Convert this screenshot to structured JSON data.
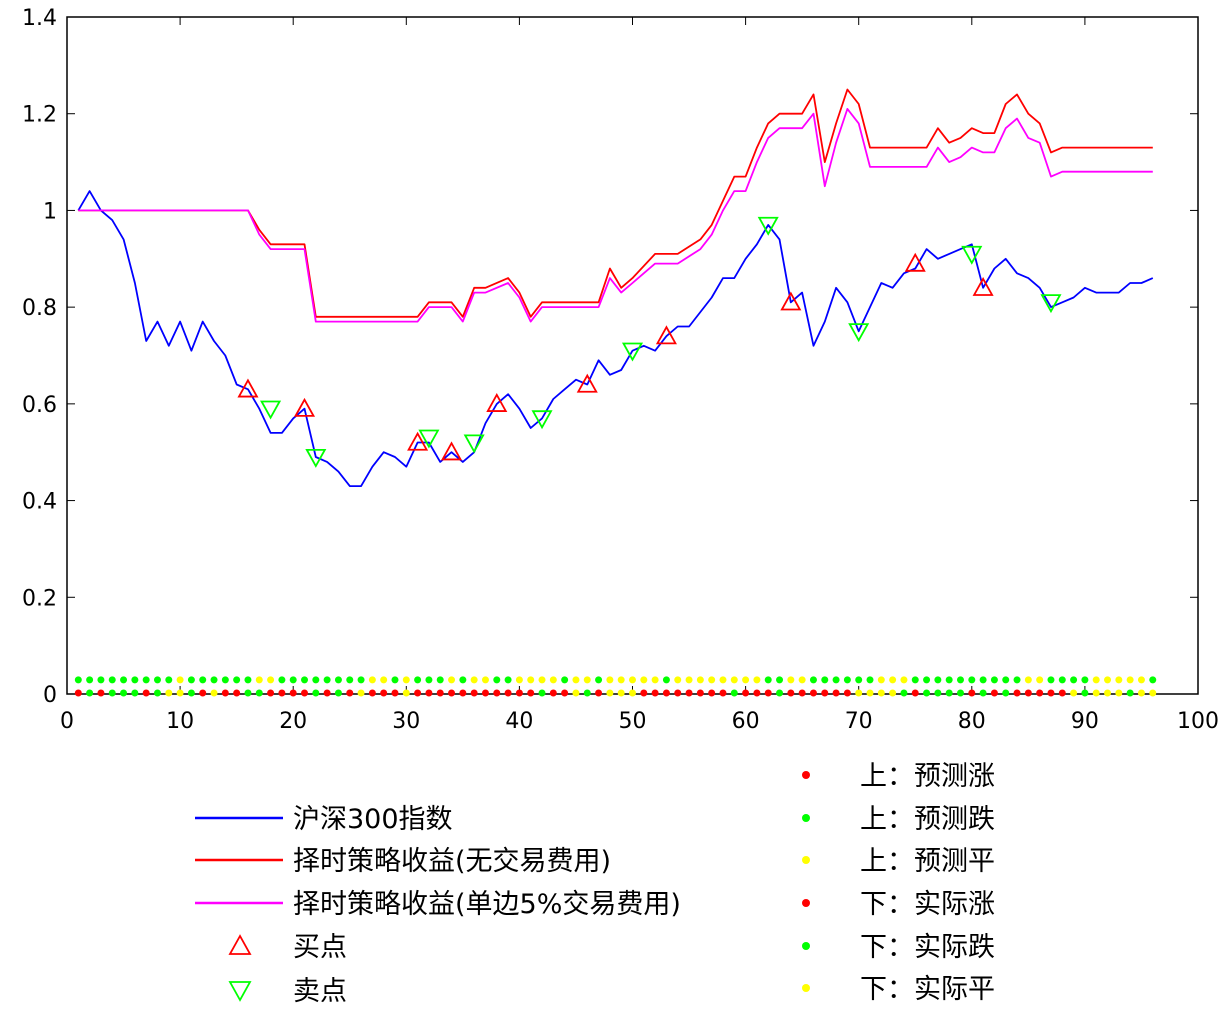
{
  "chart_data": {
    "type": "line",
    "xlim": [
      0,
      100
    ],
    "ylim": [
      0,
      1.4
    ],
    "xticks": [
      0,
      10,
      20,
      30,
      40,
      50,
      60,
      70,
      80,
      90,
      100
    ],
    "yticks": [
      0,
      0.2,
      0.4,
      0.6,
      0.8,
      1,
      1.2,
      1.4
    ],
    "xtick_labels": [
      "0",
      "10",
      "20",
      "30",
      "40",
      "50",
      "60",
      "70",
      "80",
      "90",
      "100"
    ],
    "ytick_labels": [
      "0",
      "0.2",
      "0.4",
      "0.6",
      "0.8",
      "1",
      "1.2",
      "1.4"
    ],
    "grid": false,
    "series": [
      {
        "name": "沪深300指数",
        "color": "#0000ff",
        "x": [
          1,
          2,
          3,
          4,
          5,
          6,
          7,
          8,
          9,
          10,
          11,
          12,
          13,
          14,
          15,
          16,
          17,
          18,
          19,
          20,
          21,
          22,
          23,
          24,
          25,
          26,
          27,
          28,
          29,
          30,
          31,
          32,
          33,
          34,
          35,
          36,
          37,
          38,
          39,
          40,
          41,
          42,
          43,
          44,
          45,
          46,
          47,
          48,
          49,
          50,
          51,
          52,
          53,
          54,
          55,
          56,
          57,
          58,
          59,
          60,
          61,
          62,
          63,
          64,
          65,
          66,
          67,
          68,
          69,
          70,
          71,
          72,
          73,
          74,
          75,
          76,
          77,
          78,
          79,
          80,
          81,
          82,
          83,
          84,
          85,
          86,
          87,
          88,
          89,
          90,
          91,
          92,
          93,
          94,
          95,
          96
        ],
        "y": [
          1.0,
          1.04,
          1.0,
          0.98,
          0.94,
          0.85,
          0.73,
          0.77,
          0.72,
          0.77,
          0.71,
          0.77,
          0.73,
          0.7,
          0.64,
          0.63,
          0.59,
          0.54,
          0.54,
          0.57,
          0.59,
          0.49,
          0.48,
          0.46,
          0.43,
          0.43,
          0.47,
          0.5,
          0.49,
          0.47,
          0.52,
          0.52,
          0.48,
          0.5,
          0.48,
          0.5,
          0.56,
          0.6,
          0.62,
          0.59,
          0.55,
          0.57,
          0.61,
          0.63,
          0.65,
          0.64,
          0.69,
          0.66,
          0.67,
          0.71,
          0.72,
          0.71,
          0.74,
          0.76,
          0.76,
          0.79,
          0.82,
          0.86,
          0.86,
          0.9,
          0.93,
          0.97,
          0.94,
          0.81,
          0.83,
          0.72,
          0.77,
          0.84,
          0.81,
          0.75,
          0.8,
          0.85,
          0.84,
          0.87,
          0.88,
          0.92,
          0.9,
          0.91,
          0.92,
          0.93,
          0.84,
          0.88,
          0.9,
          0.87,
          0.86,
          0.84,
          0.8,
          0.81,
          0.82,
          0.84,
          0.83,
          0.83,
          0.83,
          0.85,
          0.85,
          0.86
        ]
      },
      {
        "name": "择时策略收益(无交易费用)",
        "color": "#ff0000",
        "x": [
          1,
          16,
          17,
          18,
          20,
          21,
          22,
          27,
          30,
          31,
          32,
          34,
          35,
          36,
          37,
          39,
          40,
          41,
          42,
          44,
          46,
          47,
          48,
          49,
          50,
          52,
          53,
          54,
          56,
          57,
          58,
          59,
          60,
          61,
          62,
          63,
          64,
          65,
          66,
          67,
          68,
          69,
          70,
          71,
          72,
          75,
          76,
          77,
          78,
          79,
          80,
          81,
          82,
          83,
          84,
          85,
          86,
          87,
          88,
          96
        ],
        "y": [
          1.0,
          1.0,
          0.96,
          0.93,
          0.93,
          0.93,
          0.78,
          0.78,
          0.78,
          0.78,
          0.81,
          0.81,
          0.78,
          0.84,
          0.84,
          0.86,
          0.83,
          0.78,
          0.81,
          0.81,
          0.81,
          0.81,
          0.88,
          0.84,
          0.86,
          0.91,
          0.91,
          0.91,
          0.94,
          0.97,
          1.02,
          1.07,
          1.07,
          1.13,
          1.18,
          1.2,
          1.2,
          1.2,
          1.24,
          1.1,
          1.18,
          1.25,
          1.22,
          1.13,
          1.13,
          1.13,
          1.13,
          1.17,
          1.14,
          1.15,
          1.17,
          1.16,
          1.16,
          1.22,
          1.24,
          1.2,
          1.18,
          1.12,
          1.13,
          1.13
        ]
      },
      {
        "name": "择时策略收益(单边5%交易费用)",
        "color": "#ff00ff",
        "x": [
          1,
          16,
          17,
          18,
          20,
          21,
          22,
          27,
          30,
          31,
          32,
          34,
          35,
          36,
          37,
          39,
          40,
          41,
          42,
          44,
          46,
          47,
          48,
          49,
          50,
          52,
          53,
          54,
          56,
          57,
          58,
          59,
          60,
          61,
          62,
          63,
          64,
          65,
          66,
          67,
          68,
          69,
          70,
          71,
          72,
          75,
          76,
          77,
          78,
          79,
          80,
          81,
          82,
          83,
          84,
          85,
          86,
          87,
          88,
          96
        ],
        "y": [
          1.0,
          1.0,
          0.95,
          0.92,
          0.92,
          0.92,
          0.77,
          0.77,
          0.77,
          0.77,
          0.8,
          0.8,
          0.77,
          0.83,
          0.83,
          0.85,
          0.82,
          0.77,
          0.8,
          0.8,
          0.8,
          0.8,
          0.86,
          0.83,
          0.85,
          0.89,
          0.89,
          0.89,
          0.92,
          0.95,
          1.0,
          1.04,
          1.04,
          1.1,
          1.15,
          1.17,
          1.17,
          1.17,
          1.2,
          1.05,
          1.14,
          1.21,
          1.18,
          1.09,
          1.09,
          1.09,
          1.09,
          1.13,
          1.1,
          1.11,
          1.13,
          1.12,
          1.12,
          1.17,
          1.19,
          1.15,
          1.14,
          1.07,
          1.08,
          1.08
        ]
      }
    ],
    "buy_points": {
      "name": "买点",
      "color": "#ff0000",
      "x": [
        16,
        21,
        31,
        34,
        38,
        46,
        53,
        64,
        75,
        81
      ],
      "y": [
        0.63,
        0.59,
        0.52,
        0.5,
        0.6,
        0.64,
        0.74,
        0.81,
        0.89,
        0.84
      ]
    },
    "sell_points": {
      "name": "卖点",
      "color": "#00ff00",
      "x": [
        18,
        22,
        32,
        36,
        42,
        50,
        62,
        70,
        80,
        87
      ],
      "y": [
        0.59,
        0.49,
        0.53,
        0.52,
        0.57,
        0.71,
        0.97,
        0.75,
        0.91,
        0.81
      ]
    },
    "signal_rows": {
      "upper": {
        "y": 0.025,
        "values": [
          "fall",
          "fall",
          "fall",
          "fall",
          "fall",
          "fall",
          "fall",
          "fall",
          "fall",
          "flat",
          "fall",
          "fall",
          "fall",
          "fall",
          "fall",
          "fall",
          "flat",
          "flat",
          "fall",
          "fall",
          "fall",
          "fall",
          "fall",
          "fall",
          "fall",
          "fall",
          "flat",
          "flat",
          "fall",
          "flat",
          "fall",
          "fall",
          "fall",
          "flat",
          "fall",
          "flat",
          "flat",
          "fall",
          "fall",
          "flat",
          "flat",
          "flat",
          "flat",
          "fall",
          "flat",
          "flat",
          "fall",
          "flat",
          "flat",
          "flat",
          "flat",
          "flat",
          "fall",
          "flat",
          "flat",
          "flat",
          "flat",
          "flat",
          "flat",
          "flat",
          "flat",
          "fall",
          "fall",
          "flat",
          "flat",
          "fall",
          "fall",
          "fall",
          "fall",
          "fall",
          "fall",
          "flat",
          "flat",
          "flat",
          "fall",
          "fall",
          "fall",
          "fall",
          "fall",
          "fall",
          "fall",
          "fall",
          "fall",
          "fall",
          "flat",
          "flat",
          "fall",
          "fall",
          "fall",
          "fall",
          "flat",
          "flat",
          "flat",
          "flat",
          "flat",
          "fall"
        ]
      },
      "lower": {
        "y": 0.0,
        "values": [
          "rise",
          "fall",
          "rise",
          "fall",
          "fall",
          "fall",
          "rise",
          "fall",
          "flat",
          "flat",
          "fall",
          "rise",
          "flat",
          "rise",
          "rise",
          "fall",
          "fall",
          "rise",
          "rise",
          "rise",
          "rise",
          "fall",
          "rise",
          "fall",
          "rise",
          "flat",
          "rise",
          "rise",
          "rise",
          "flat",
          "rise",
          "rise",
          "rise",
          "rise",
          "rise",
          "rise",
          "rise",
          "rise",
          "rise",
          "rise",
          "rise",
          "fall",
          "rise",
          "rise",
          "flat",
          "fall",
          "rise",
          "flat",
          "flat",
          "flat",
          "rise",
          "rise",
          "rise",
          "rise",
          "rise",
          "rise",
          "rise",
          "rise",
          "fall",
          "rise",
          "rise",
          "rise",
          "fall",
          "rise",
          "rise",
          "rise",
          "rise",
          "rise",
          "rise",
          "flat",
          "flat",
          "flat",
          "flat",
          "fall",
          "rise",
          "fall",
          "fall",
          "fall",
          "fall",
          "rise",
          "fall",
          "rise",
          "fall",
          "rise",
          "rise",
          "rise",
          "rise",
          "rise",
          "flat",
          "fall",
          "flat",
          "flat",
          "flat",
          "fall",
          "flat",
          "flat"
        ]
      },
      "colors": {
        "rise": "#ff0000",
        "fall": "#00ff00",
        "flat": "#ffff00"
      }
    },
    "legend_left": [
      {
        "kind": "line",
        "color": "#0000ff",
        "label": "沪深300指数"
      },
      {
        "kind": "line",
        "color": "#ff0000",
        "label": "择时策略收益(无交易费用)"
      },
      {
        "kind": "line",
        "color": "#ff00ff",
        "label": "择时策略收益(单边5%交易费用)"
      },
      {
        "kind": "buy",
        "color": "#ff0000",
        "label": "买点"
      },
      {
        "kind": "sell",
        "color": "#00ff00",
        "label": "卖点"
      }
    ],
    "legend_right": [
      {
        "color": "#ff0000",
        "label": "上：预测涨"
      },
      {
        "color": "#00ff00",
        "label": "上：预测跌"
      },
      {
        "color": "#ffff00",
        "label": "上：预测平"
      },
      {
        "color": "#ff0000",
        "label": "下：实际涨"
      },
      {
        "color": "#00ff00",
        "label": "下：实际跌"
      },
      {
        "color": "#ffff00",
        "label": "下：实际平"
      }
    ]
  }
}
